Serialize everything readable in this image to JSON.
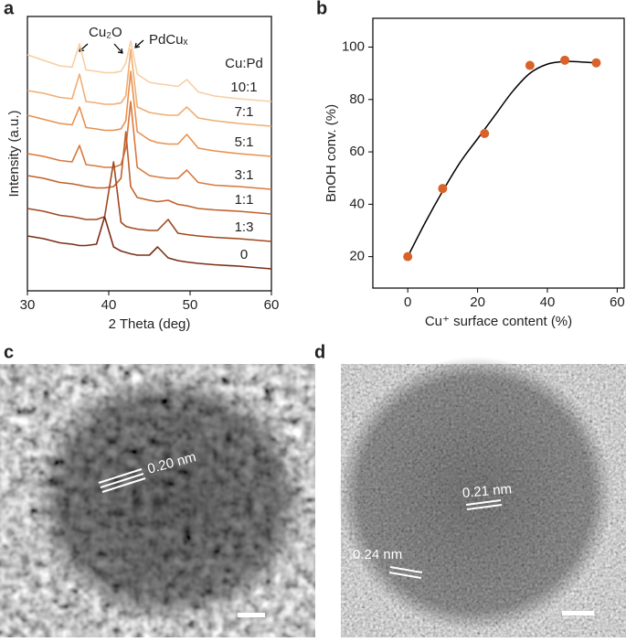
{
  "chart_data": [
    {
      "type": "line",
      "panel": "a",
      "xlabel": "2 Theta (deg)",
      "ylabel": "Intensity (a.u.)",
      "xlim": [
        30,
        60
      ],
      "xticks": [
        30,
        40,
        50,
        60
      ],
      "ylim": [
        0,
        100
      ],
      "legend_title": "Cu:Pd",
      "annotations": [
        "Cu₂O",
        "PdCuₓ"
      ],
      "x": [
        30,
        32,
        34,
        35.5,
        36.4,
        37.2,
        38.5,
        39.5,
        40.6,
        41.5,
        42.1,
        42.7,
        43.5,
        45,
        46,
        47.3,
        48.5,
        49.6,
        51,
        53,
        56,
        60
      ],
      "series": [
        {
          "name": "10:1",
          "color": "#f7cfa3",
          "values": [
            86,
            84,
            82,
            81.5,
            90,
            80.5,
            80,
            79.5,
            79.5,
            80,
            83,
            91,
            79,
            76,
            75.5,
            75,
            74.5,
            77,
            72.5,
            71,
            70,
            69
          ]
        },
        {
          "name": "7:1",
          "color": "#f0ad74",
          "values": [
            73,
            72,
            70.5,
            70,
            79,
            69,
            68.5,
            68,
            68,
            68.5,
            71,
            88,
            67,
            65,
            64.5,
            64,
            64,
            67,
            63,
            62,
            61,
            60
          ]
        },
        {
          "name": "5:1",
          "color": "#e8914f",
          "values": [
            64,
            62.5,
            61,
            60.5,
            67,
            59.5,
            59,
            58.5,
            58.5,
            59,
            62,
            80,
            58,
            55,
            54,
            53.5,
            53.5,
            57,
            52,
            51,
            50,
            49
          ]
        },
        {
          "name": "3:1",
          "color": "#d9783c",
          "values": [
            50,
            49,
            47.5,
            47,
            53,
            46,
            45.5,
            45,
            45,
            46,
            52,
            69,
            45,
            42,
            41.5,
            41,
            41,
            44,
            39.5,
            38.5,
            38,
            37
          ]
        },
        {
          "name": "1:1",
          "color": "#c0602a",
          "values": [
            42,
            41,
            39.5,
            39,
            38.5,
            38,
            37.5,
            37.5,
            38,
            41,
            58,
            38,
            34,
            33,
            32.5,
            33,
            31.5,
            31,
            30,
            29.5,
            29,
            28
          ]
        },
        {
          "name": "1:3",
          "color": "#a0481f",
          "values": [
            30,
            29,
            27.5,
            27,
            26.5,
            26,
            26,
            27,
            47,
            25,
            23.5,
            23,
            22.5,
            22,
            22,
            26,
            21,
            20.5,
            20,
            19.5,
            19,
            18
          ]
        },
        {
          "name": "0",
          "color": "#7a2e16",
          "values": [
            20,
            19,
            17.5,
            17,
            16.5,
            16.5,
            17,
            27,
            16,
            14.5,
            14,
            13.5,
            13,
            13,
            16,
            12,
            11,
            10.5,
            10,
            9.5,
            9,
            8
          ]
        }
      ]
    },
    {
      "type": "scatter",
      "panel": "b",
      "xlabel": "Cu⁺ surface content (%)",
      "ylabel": "BnOH conv. (%)",
      "xlim": [
        -10,
        62
      ],
      "xticks": [
        0,
        20,
        40,
        60
      ],
      "ylim": [
        8,
        111
      ],
      "yticks": [
        20,
        40,
        60,
        80,
        100
      ],
      "color": "#d9622b",
      "x": [
        0,
        10,
        22,
        35,
        45,
        54
      ],
      "values": [
        20,
        46,
        67,
        93,
        95,
        94
      ],
      "fit": {
        "color": "#000000",
        "x": [
          0,
          5,
          10,
          15,
          20,
          25,
          30,
          35,
          40,
          45,
          50,
          54
        ],
        "y": [
          20,
          33,
          45,
          56,
          65,
          74,
          83,
          90,
          93.5,
          94.5,
          94.3,
          94
        ]
      }
    }
  ],
  "images": [
    {
      "panel": "c",
      "scale_labels": [
        "0.20 nm"
      ]
    },
    {
      "panel": "d",
      "scale_labels": [
        "0.21 nm",
        "0.24 nm"
      ]
    }
  ]
}
